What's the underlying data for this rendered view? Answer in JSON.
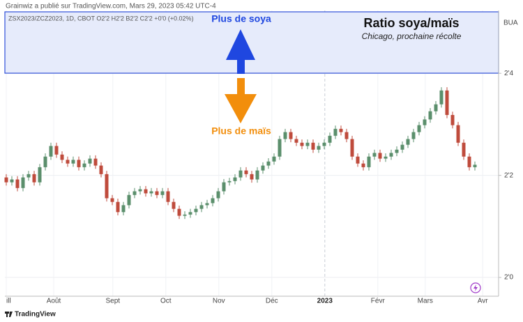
{
  "header": {
    "published": "Grainwiz a publié sur TradingView.com, Mars 29, 2023 05:42 UTC-4"
  },
  "chart_data": {
    "type": "candlestick",
    "symbol_line": "ZSX2023/ZCZ2023, 1D, CBOT  O2'2  H2'2  B2'2  C2'2  +0'0 (+0.02%)",
    "title": "Ratio soya/maïs",
    "subtitle": "Chicago, prochaine récolte",
    "annotations": [
      "Plus de soya",
      "Plus de maïs"
    ],
    "y_top_label": "BUA",
    "up_color": "#5b8f6c",
    "down_color": "#bf4b3c",
    "open": [
      2.245,
      2.233,
      2.24,
      2.219,
      2.245,
      2.253,
      2.233,
      2.27,
      2.296,
      2.322,
      2.301,
      2.288,
      2.279,
      2.288,
      2.27,
      2.279,
      2.291,
      2.274,
      2.253,
      2.194,
      2.185,
      2.16,
      2.177,
      2.202,
      2.211,
      2.216,
      2.206,
      2.211,
      2.202,
      2.211,
      2.185,
      2.168,
      2.151,
      2.154,
      2.16,
      2.168,
      2.177,
      2.182,
      2.194,
      2.211,
      2.233,
      2.236,
      2.245,
      2.262,
      2.253,
      2.24,
      2.262,
      2.274,
      2.284,
      2.296,
      2.339,
      2.356,
      2.339,
      2.33,
      2.322,
      2.33,
      2.313,
      2.322,
      2.33,
      2.347,
      2.364,
      2.356,
      2.339,
      2.296,
      2.279,
      2.27,
      2.296,
      2.305,
      2.291,
      2.296,
      2.305,
      2.313,
      2.325,
      2.339,
      2.356,
      2.373,
      2.387,
      2.407,
      2.424,
      2.458,
      2.398,
      2.373,
      2.33,
      2.296,
      2.27
    ],
    "high": [
      2.253,
      2.248,
      2.248,
      2.253,
      2.261,
      2.261,
      2.278,
      2.304,
      2.33,
      2.33,
      2.309,
      2.296,
      2.296,
      2.296,
      2.287,
      2.299,
      2.299,
      2.282,
      2.261,
      2.202,
      2.193,
      2.185,
      2.21,
      2.219,
      2.224,
      2.224,
      2.219,
      2.219,
      2.219,
      2.219,
      2.193,
      2.176,
      2.162,
      2.168,
      2.176,
      2.185,
      2.19,
      2.202,
      2.219,
      2.241,
      2.244,
      2.253,
      2.27,
      2.27,
      2.261,
      2.27,
      2.282,
      2.292,
      2.304,
      2.347,
      2.364,
      2.364,
      2.347,
      2.338,
      2.338,
      2.338,
      2.33,
      2.338,
      2.355,
      2.372,
      2.372,
      2.364,
      2.347,
      2.304,
      2.287,
      2.304,
      2.313,
      2.313,
      2.304,
      2.313,
      2.321,
      2.333,
      2.347,
      2.364,
      2.381,
      2.395,
      2.415,
      2.432,
      2.466,
      2.466,
      2.406,
      2.381,
      2.338,
      2.304,
      2.284
    ],
    "low": [
      2.225,
      2.225,
      2.211,
      2.211,
      2.237,
      2.225,
      2.225,
      2.262,
      2.288,
      2.293,
      2.28,
      2.271,
      2.271,
      2.262,
      2.262,
      2.271,
      2.266,
      2.245,
      2.186,
      2.177,
      2.152,
      2.152,
      2.169,
      2.194,
      2.203,
      2.198,
      2.198,
      2.194,
      2.194,
      2.177,
      2.16,
      2.143,
      2.143,
      2.146,
      2.152,
      2.16,
      2.169,
      2.174,
      2.186,
      2.203,
      2.225,
      2.228,
      2.237,
      2.245,
      2.232,
      2.232,
      2.254,
      2.266,
      2.276,
      2.288,
      2.331,
      2.331,
      2.322,
      2.314,
      2.314,
      2.305,
      2.305,
      2.314,
      2.322,
      2.339,
      2.348,
      2.331,
      2.288,
      2.271,
      2.262,
      2.262,
      2.288,
      2.283,
      2.283,
      2.288,
      2.297,
      2.305,
      2.317,
      2.331,
      2.348,
      2.365,
      2.379,
      2.399,
      2.416,
      2.39,
      2.365,
      2.322,
      2.288,
      2.262,
      2.262
    ],
    "close": [
      2.233,
      2.24,
      2.219,
      2.245,
      2.253,
      2.233,
      2.27,
      2.296,
      2.322,
      2.301,
      2.288,
      2.279,
      2.288,
      2.27,
      2.279,
      2.291,
      2.274,
      2.253,
      2.194,
      2.185,
      2.16,
      2.177,
      2.202,
      2.211,
      2.216,
      2.206,
      2.211,
      2.202,
      2.211,
      2.185,
      2.168,
      2.151,
      2.154,
      2.16,
      2.168,
      2.177,
      2.182,
      2.194,
      2.211,
      2.233,
      2.236,
      2.245,
      2.262,
      2.253,
      2.24,
      2.262,
      2.274,
      2.284,
      2.296,
      2.339,
      2.356,
      2.339,
      2.33,
      2.322,
      2.33,
      2.313,
      2.322,
      2.33,
      2.347,
      2.364,
      2.356,
      2.339,
      2.296,
      2.279,
      2.27,
      2.296,
      2.305,
      2.291,
      2.296,
      2.305,
      2.313,
      2.325,
      2.339,
      2.356,
      2.373,
      2.387,
      2.407,
      2.424,
      2.458,
      2.398,
      2.373,
      2.33,
      2.296,
      2.27,
      2.276
    ],
    "xlim": [
      -0.25,
      88.25
    ],
    "xticks": [
      {
        "value": 0,
        "label": "ill"
      },
      {
        "value": 8.5,
        "label": "Août"
      },
      {
        "value": 19.1,
        "label": "Sept"
      },
      {
        "value": 28.6,
        "label": "Oct"
      },
      {
        "value": 38.1,
        "label": "Nov"
      },
      {
        "value": 47.6,
        "label": "Déc"
      },
      {
        "value": 57.1,
        "label": "2023"
      },
      {
        "value": 66.6,
        "label": "Févr"
      },
      {
        "value": 75.1,
        "label": "Mars"
      },
      {
        "value": 85.4,
        "label": "Avr"
      }
    ],
    "ylim": [
      1.954,
      2.654
    ],
    "yticks": [
      {
        "value": 2.5,
        "label": "2'4"
      },
      {
        "value": 2.25,
        "label": "2'2"
      },
      {
        "value": 2.0,
        "label": "2'0"
      }
    ],
    "grid": true
  },
  "footer": {
    "brand": "TradingView"
  }
}
